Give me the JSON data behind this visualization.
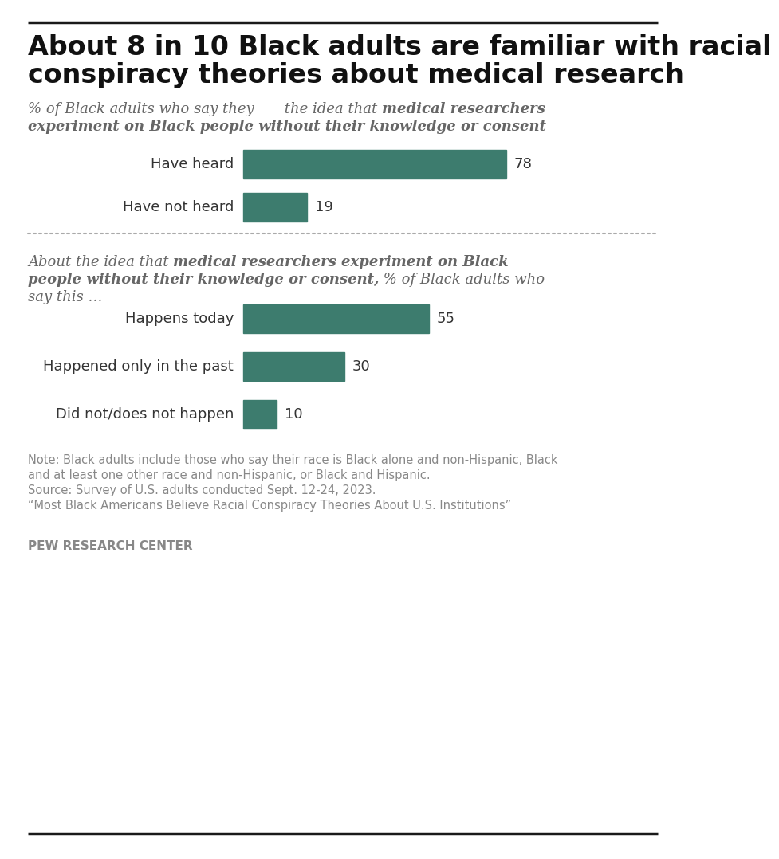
{
  "title_line1": "About 8 in 10 Black adults are familiar with racial",
  "title_line2": "conspiracy theories about medical research",
  "bar_color": "#3d7c6e",
  "section1_labels": [
    "Have heard",
    "Have not heard"
  ],
  "section1_values": [
    78,
    19
  ],
  "section2_labels": [
    "Happens today",
    "Happened only in the past",
    "Did not/does not happen"
  ],
  "section2_values": [
    55,
    30,
    10
  ],
  "subtitle_color": "#666666",
  "label_color": "#333333",
  "note_color": "#888888",
  "title_color": "#111111",
  "background_color": "#ffffff",
  "note_line1": "Note: Black adults include those who say their race is Black alone and non-Hispanic, Black",
  "note_line2": "and at least one other race and non-Hispanic, or Black and Hispanic.",
  "note_line3": "Source: Survey of U.S. adults conducted Sept. 12-24, 2023.",
  "note_line4": "“Most Black Americans Believe Racial Conspiracy Theories About U.S. Institutions”",
  "pew": "PEW RESEARCH CENTER"
}
